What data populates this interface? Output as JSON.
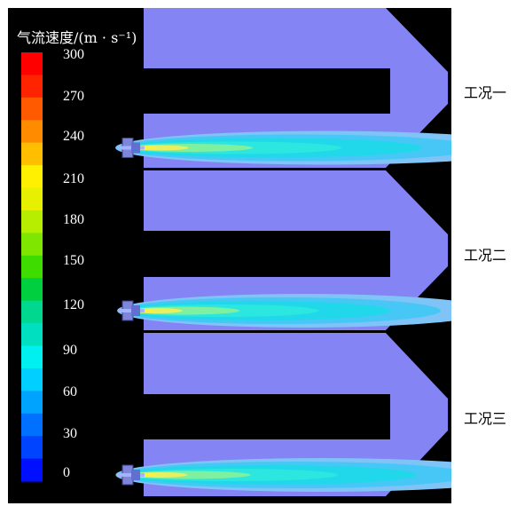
{
  "legend": {
    "title": "气流速度/(m · s⁻¹)",
    "ticks": [
      "300",
      "270",
      "240",
      "210",
      "180",
      "150",
      "120",
      "90",
      "60",
      "30",
      "0"
    ],
    "colors": [
      "#ff0000",
      "#ff2400",
      "#ff5a00",
      "#ff8c00",
      "#ffbe00",
      "#ffef00",
      "#e6f000",
      "#b7ee00",
      "#7fe600",
      "#3fdc00",
      "#00d040",
      "#00d890",
      "#00dfc0",
      "#00efef",
      "#00cfff",
      "#00a4ff",
      "#0070ff",
      "#0044ff",
      "#0010ff"
    ]
  },
  "cases": [
    {
      "label": "工况一",
      "jet_length": 0.55
    },
    {
      "label": "工况二",
      "jet_length": 0.49
    },
    {
      "label": "工况三",
      "jet_length": 0.54
    }
  ],
  "style": {
    "background": "#000000",
    "domain_color": "#8484f4",
    "ink": "#ffffff"
  }
}
